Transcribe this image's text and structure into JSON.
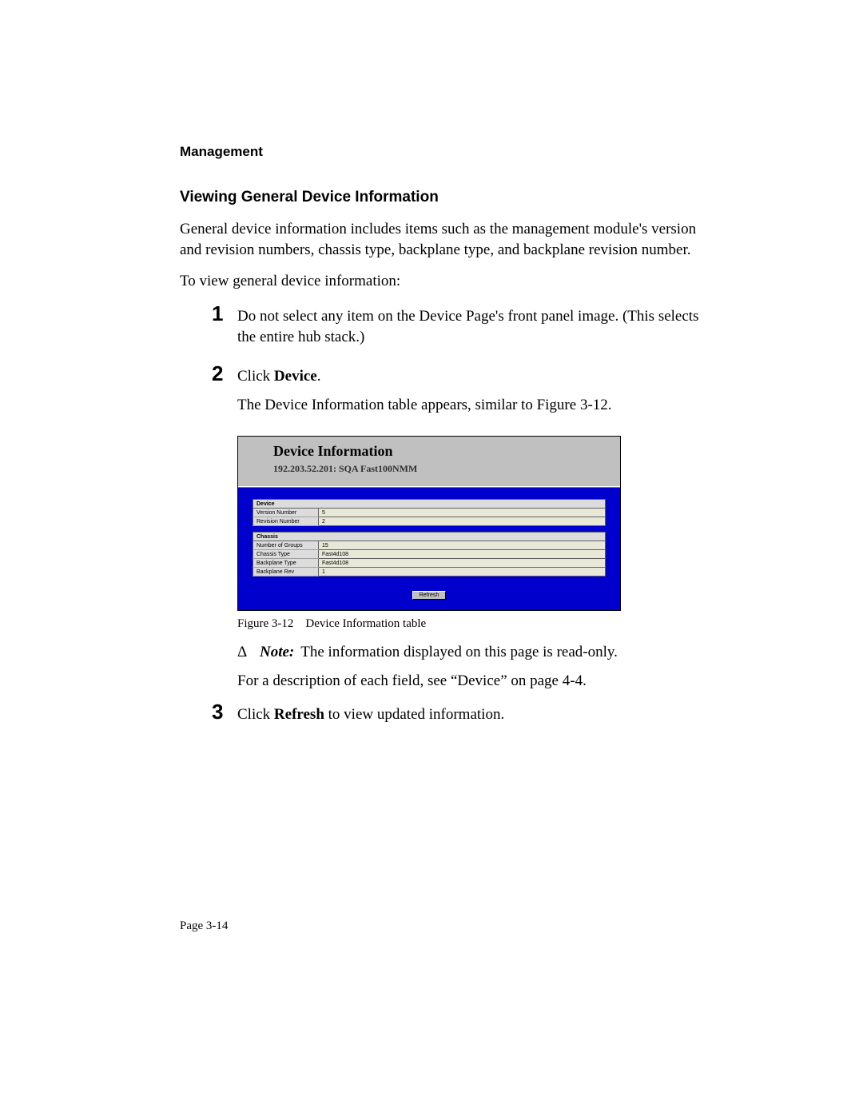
{
  "header": {
    "section": "Management"
  },
  "title": "Viewing General Device Information",
  "intro": "General device information includes items such as the management module's version and revision numbers, chassis type, backplane type, and backplane revision number.",
  "lead": "To view general device information:",
  "steps": {
    "s1": {
      "num": "1",
      "text": "Do not select any item on the Device Page's front panel image.  (This selects the entire hub stack.)"
    },
    "s2": {
      "num": "2",
      "pre": "Click ",
      "bold": "Device",
      "post": ".",
      "follow": "The Device Information table appears, similar to Figure 3-12."
    },
    "s3": {
      "num": "3",
      "pre": "Click ",
      "bold": "Refresh",
      "post": " to view updated information."
    }
  },
  "figure": {
    "title": "Device Information",
    "subtitle": "192.203.52.201: SQA Fast100NMM",
    "sections": [
      {
        "head": "Device",
        "rows": [
          {
            "label": "Version Number",
            "value": "5"
          },
          {
            "label": "Revision Number",
            "value": "2"
          }
        ]
      },
      {
        "head": "Chassis",
        "rows": [
          {
            "label": "Number of Groups",
            "value": "15"
          },
          {
            "label": "Chassis Type",
            "value": "Fast4d108"
          },
          {
            "label": "Backplane Type",
            "value": "Fast4d108"
          },
          {
            "label": "Backplane Rev",
            "value": "1"
          }
        ]
      }
    ],
    "button": "Refresh",
    "caption_pre": "Figure 3-12",
    "caption_post": "Device Information table"
  },
  "note": {
    "delta": "Δ",
    "label": "Note:",
    "text": "The information displayed on this page is read-only."
  },
  "after_note": "For a description of each field, see “Device” on page 4-4.",
  "page_number": "Page 3-14"
}
